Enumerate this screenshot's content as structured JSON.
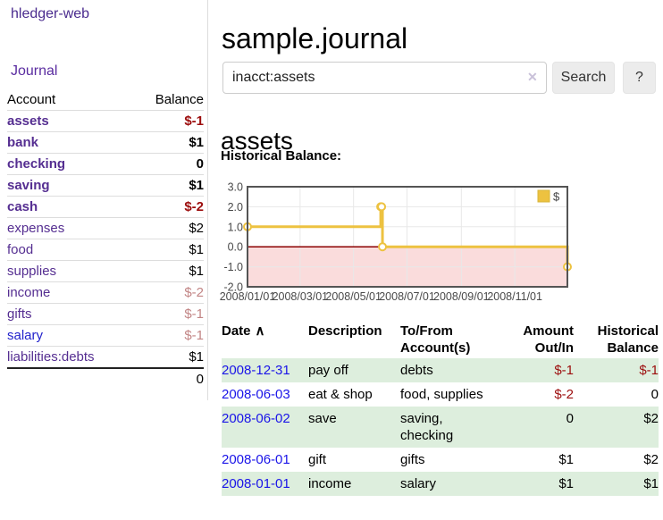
{
  "app": {
    "title": "hledger-web"
  },
  "sidebar": {
    "journal_link": "Journal",
    "accounts_table": {
      "account_header": "Account",
      "balance_header": "Balance",
      "rows": [
        {
          "name": "assets",
          "balance": "$-1",
          "depth": 1,
          "bold": true,
          "balance_style": "neg-strong",
          "link_style": "purple"
        },
        {
          "name": "bank",
          "balance": "$1",
          "depth": 2,
          "bold": true,
          "balance_style": "pos",
          "link_style": "purple"
        },
        {
          "name": "checking",
          "balance": "0",
          "depth": 3,
          "bold": true,
          "balance_style": "pos",
          "link_style": "purple"
        },
        {
          "name": "saving",
          "balance": "$1",
          "depth": 3,
          "bold": true,
          "balance_style": "pos",
          "link_style": "purple"
        },
        {
          "name": "cash",
          "balance": "$-2",
          "depth": 2,
          "bold": true,
          "balance_style": "neg-strong",
          "link_style": "purple"
        },
        {
          "name": "expenses",
          "balance": "$2",
          "depth": 1,
          "bold": false,
          "balance_style": "pos",
          "link_style": "purple"
        },
        {
          "name": "food",
          "balance": "$1",
          "depth": 2,
          "bold": false,
          "balance_style": "pos",
          "link_style": "purple"
        },
        {
          "name": "supplies",
          "balance": "$1",
          "depth": 2,
          "bold": false,
          "balance_style": "pos",
          "link_style": "purple"
        },
        {
          "name": "income",
          "balance": "$-2",
          "depth": 1,
          "bold": false,
          "balance_style": "neg-soft",
          "link_style": "purple"
        },
        {
          "name": "gifts",
          "balance": "$-1",
          "depth": 2,
          "bold": false,
          "balance_style": "neg-soft",
          "link_style": "purple"
        },
        {
          "name": "salary",
          "balance": "$-1",
          "depth": 2,
          "bold": false,
          "balance_style": "neg-soft",
          "link_style": "blue"
        },
        {
          "name": "liabilities:debts",
          "balance": "$1",
          "depth": 1,
          "bold": false,
          "balance_style": "pos",
          "link_style": "purple"
        }
      ],
      "total": "0"
    }
  },
  "main": {
    "title": "sample.journal",
    "search": {
      "value": "inacct:assets",
      "clear_icon": "✕",
      "search_button": "Search",
      "help_button": "?"
    },
    "account_heading": "assets",
    "chart_title": "Historical Balance:",
    "register": {
      "columns": [
        {
          "label": "Date",
          "align": "left",
          "sortable": true
        },
        {
          "label": "Description",
          "align": "left"
        },
        {
          "label": "To/From Account(s)",
          "align": "left"
        },
        {
          "label": "Amount Out/In",
          "align": "right"
        },
        {
          "label": "Historical Balance",
          "align": "right"
        }
      ],
      "sort_indicator": "∧",
      "rows": [
        {
          "date": "2008-12-31",
          "description": "pay off",
          "accounts": "debts",
          "amount": "$-1",
          "amount_negative": true,
          "balance": "$-1",
          "balance_negative": true,
          "shaded": true
        },
        {
          "date": "2008-06-03",
          "description": "eat & shop",
          "accounts": "food, supplies",
          "amount": "$-2",
          "amount_negative": true,
          "balance": "0",
          "balance_negative": false,
          "shaded": false
        },
        {
          "date": "2008-06-02",
          "description": "save",
          "accounts": "saving, checking",
          "amount": "0",
          "amount_negative": false,
          "balance": "$2",
          "balance_negative": false,
          "shaded": true
        },
        {
          "date": "2008-06-01",
          "description": "gift",
          "accounts": "gifts",
          "amount": "$1",
          "amount_negative": false,
          "balance": "$2",
          "balance_negative": false,
          "shaded": false
        },
        {
          "date": "2008-01-01",
          "description": "income",
          "accounts": "salary",
          "amount": "$1",
          "amount_negative": false,
          "balance": "$1",
          "balance_negative": false,
          "shaded": true
        }
      ]
    }
  },
  "chart_data": {
    "type": "line",
    "title": "Historical Balance:",
    "step": true,
    "x_type": "date",
    "x_range": [
      "2008-01-01",
      "2008-12-31"
    ],
    "ylim": [
      -2,
      3
    ],
    "y_ticks": [
      {
        "value": 3,
        "label": "3.0"
      },
      {
        "value": 2,
        "label": "2.0"
      },
      {
        "value": 1,
        "label": "1.0"
      },
      {
        "value": 0,
        "label": "0.0"
      },
      {
        "value": -1,
        "label": "-1.0"
      },
      {
        "value": -2,
        "label": "-2.0"
      }
    ],
    "x_ticks": [
      {
        "date": "2008-01-01",
        "label": "2008/01/01"
      },
      {
        "date": "2008-03-01",
        "label": "2008/03/01"
      },
      {
        "date": "2008-05-01",
        "label": "2008/05/01"
      },
      {
        "date": "2008-07-01",
        "label": "2008/07/01"
      },
      {
        "date": "2008-09-01",
        "label": "2008/09/01"
      },
      {
        "date": "2008-11-01",
        "label": "2008/11/01"
      }
    ],
    "series": [
      {
        "name": "$",
        "color": "#edc240",
        "points": [
          {
            "date": "2008-01-01",
            "value": 1
          },
          {
            "date": "2008-06-01",
            "value": 2
          },
          {
            "date": "2008-06-02",
            "value": 2
          },
          {
            "date": "2008-06-03",
            "value": 0
          },
          {
            "date": "2008-12-31",
            "value": -1
          }
        ]
      }
    ],
    "legend": {
      "label": "$",
      "position": "top-right"
    },
    "grid": true,
    "negative_region_fill": "#fadcdc",
    "zero_line_color": "#8b0000",
    "border_color": "#545454",
    "gridline_color": "#e8e8e8",
    "tick_label_color": "#494949"
  }
}
